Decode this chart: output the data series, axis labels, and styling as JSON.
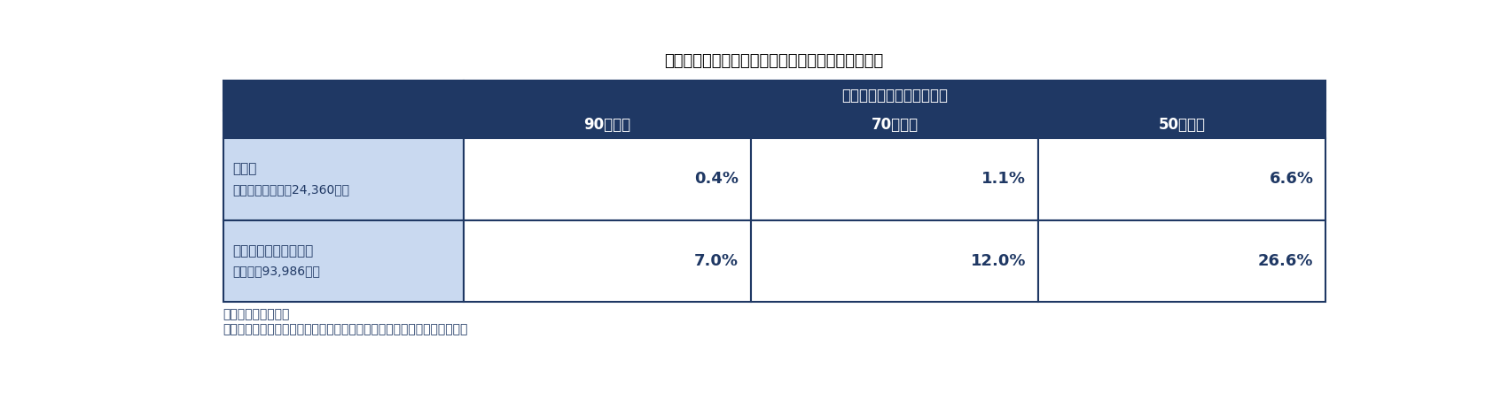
{
  "title": "（図表１）相続登記が未了となっている土地の割合",
  "header_main": "最後の登記からの経遂期間",
  "col_headers": [
    "90年以上",
    "70年以上",
    "50年以上"
  ],
  "row_label_line1": [
    "大都市",
    "中小都市・中山間地域"
  ],
  "row_label_line2": [
    "（所有権の個数：24,360個）",
    "（同上：93,986個）"
  ],
  "data": [
    [
      "0.4%",
      "1.1%",
      "6.6%"
    ],
    [
      "7.0%",
      "12.0%",
      "26.6%"
    ]
  ],
  "note1": "（注）割合は累積値",
  "note2": "（資料）法務省「不動産登記簿における相続登記未了土地調査について」",
  "header_bg": "#1f3864",
  "header_text": "#ffffff",
  "row_label_bg": "#c9d9f0",
  "row_data_bg": "#ffffff",
  "border_color": "#1f3864",
  "title_color": "#000000",
  "data_text_color": "#1f3864",
  "note_color": "#1f3864"
}
